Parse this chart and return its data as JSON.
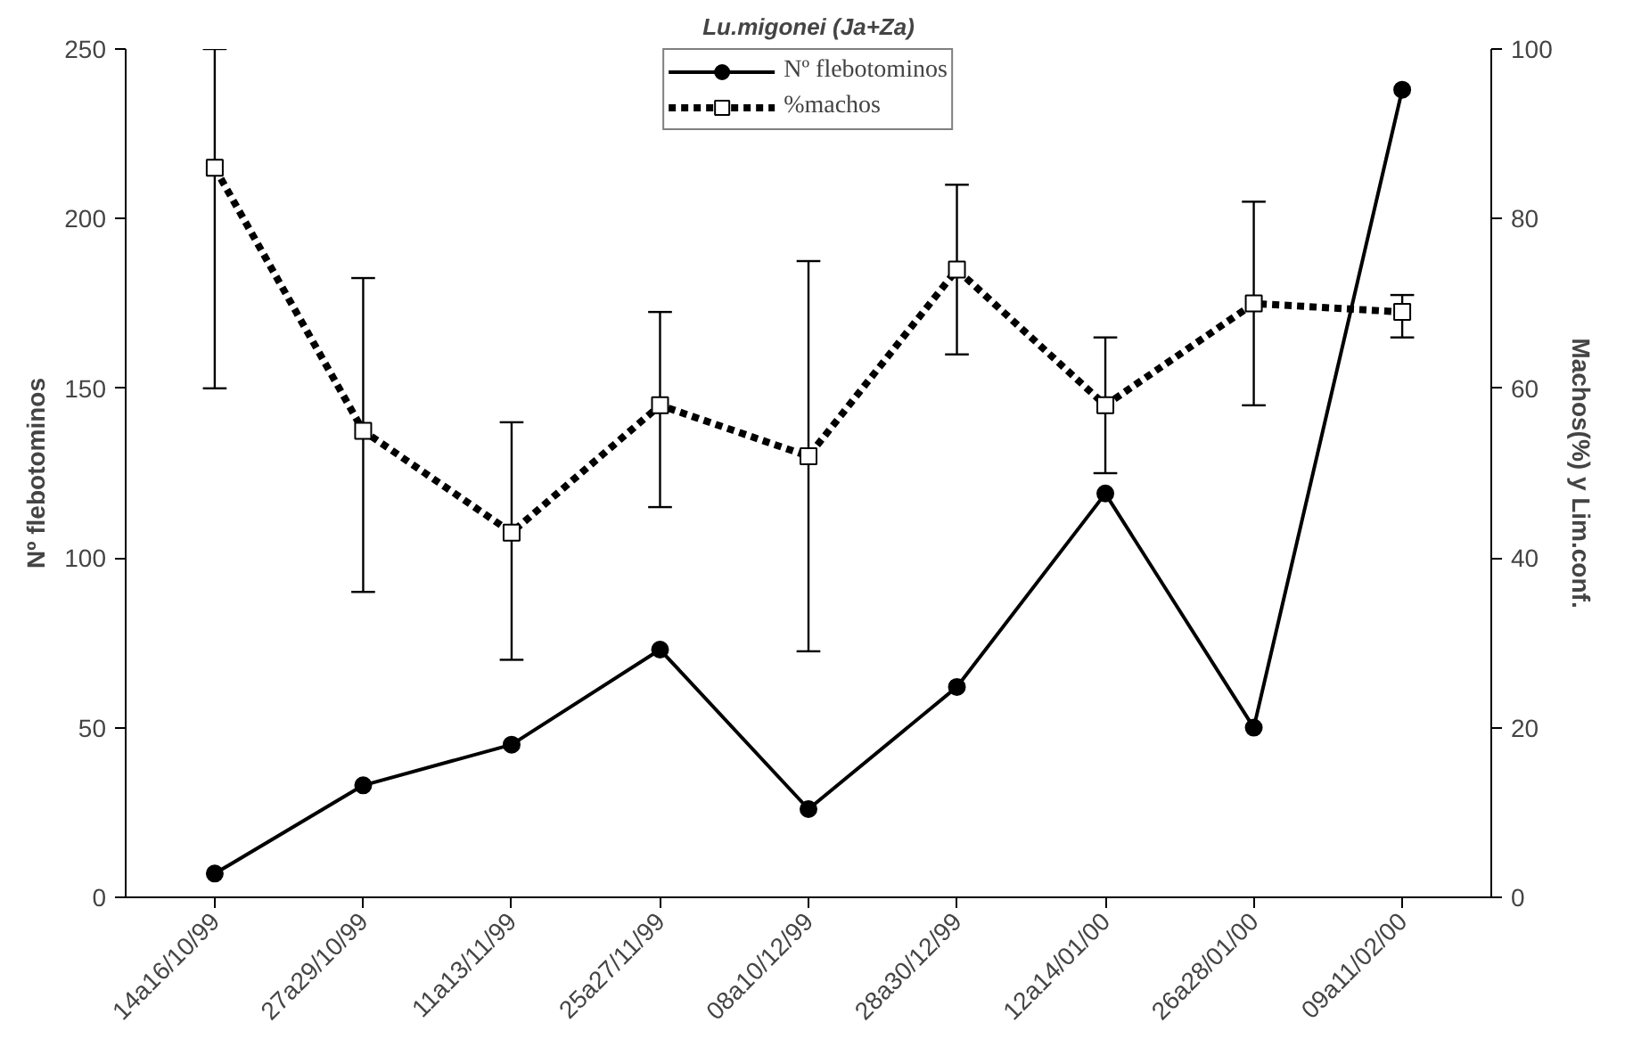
{
  "chart_data": {
    "type": "line",
    "title": "Lu.migonei (Ja+Za)",
    "ylabel": "Nº flebotominos",
    "y2label": "Machos(%) y Lim.conf.",
    "categories": [
      "14a16/10/99",
      "27a29/10/99",
      "11a13/11/99",
      "25a27/11/99",
      "08a10/12/99",
      "28a30/12/99",
      "12a14/01/00",
      "26a28/01/00",
      "09a11/02/00"
    ],
    "series": [
      {
        "name": "Nº flebotominos",
        "color": "#000000",
        "marker": "circle",
        "line_style": "solid",
        "values": [
          7,
          33,
          45,
          73,
          26,
          62,
          119,
          50,
          238
        ]
      },
      {
        "name": "%machos",
        "color": "#000000",
        "marker": "square",
        "line_style": "dashed",
        "axis": "y2",
        "values": [
          86,
          55,
          43,
          58,
          52,
          74,
          58,
          70,
          69
        ],
        "errors": [
          [
            60,
            100
          ],
          [
            36,
            73
          ],
          [
            28,
            56
          ],
          [
            46,
            69
          ],
          [
            29,
            75
          ],
          [
            64,
            84
          ],
          [
            50,
            66
          ],
          [
            58,
            82
          ],
          [
            66,
            71
          ]
        ]
      }
    ],
    "ylim": [
      0,
      250
    ],
    "yticks": [
      0,
      50,
      100,
      150,
      200,
      250
    ],
    "y2lim": [
      0,
      100
    ],
    "y2ticks": [
      0,
      20,
      40,
      60,
      80,
      100
    ],
    "grid": false,
    "legend": "top"
  }
}
